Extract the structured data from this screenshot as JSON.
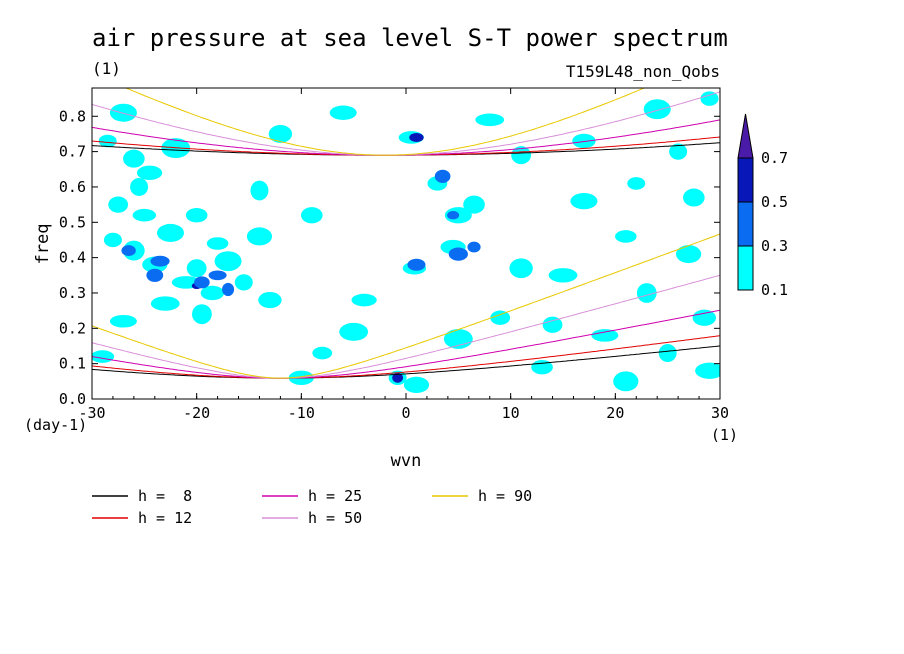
{
  "chart_data": {
    "type": "contour",
    "title": "air pressure at sea level S-T power spectrum",
    "units_label": "(1)",
    "run_label": "T159L48_non_Qobs",
    "xlabel": "wvn",
    "x_units": "(1)",
    "ylabel": "freq",
    "y_units": "(day-1)",
    "xlim": [
      -30,
      30
    ],
    "ylim": [
      0.0,
      0.88
    ],
    "x_ticks": [
      -30,
      -20,
      -10,
      0,
      10,
      20,
      30
    ],
    "y_ticks": [
      0.0,
      0.1,
      0.2,
      0.3,
      0.4,
      0.5,
      0.6,
      0.7,
      0.8
    ],
    "color_levels": [
      0.1,
      0.3,
      0.5,
      0.7
    ],
    "colorbar_colors": [
      "#00ffff",
      "#0a6cf0",
      "#0818b8",
      "#4a1aa8"
    ],
    "contour_blobs": [
      {
        "x": -28.5,
        "y": 0.73,
        "level": 0
      },
      {
        "x": -26,
        "y": 0.68,
        "level": 0
      },
      {
        "x": -24.5,
        "y": 0.64,
        "level": 0
      },
      {
        "x": -22,
        "y": 0.71,
        "level": 0
      },
      {
        "x": -27.5,
        "y": 0.55,
        "level": 0
      },
      {
        "x": -25,
        "y": 0.52,
        "level": 0
      },
      {
        "x": -22.5,
        "y": 0.47,
        "level": 0
      },
      {
        "x": -28,
        "y": 0.45,
        "level": 0
      },
      {
        "x": -26,
        "y": 0.42,
        "level": 0
      },
      {
        "x": -24,
        "y": 0.38,
        "level": 0
      },
      {
        "x": -21,
        "y": 0.33,
        "level": 0
      },
      {
        "x": -20,
        "y": 0.37,
        "level": 0
      },
      {
        "x": -18.5,
        "y": 0.3,
        "level": 0
      },
      {
        "x": -17,
        "y": 0.39,
        "level": 0
      },
      {
        "x": -15.5,
        "y": 0.33,
        "level": 0
      },
      {
        "x": -18,
        "y": 0.44,
        "level": 0
      },
      {
        "x": -14,
        "y": 0.46,
        "level": 0
      },
      {
        "x": -23,
        "y": 0.27,
        "level": 0
      },
      {
        "x": -19.5,
        "y": 0.24,
        "level": 0
      },
      {
        "x": -13,
        "y": 0.28,
        "level": 0
      },
      {
        "x": -27,
        "y": 0.22,
        "level": 0
      },
      {
        "x": -25.5,
        "y": 0.6,
        "level": 0
      },
      {
        "x": -20,
        "y": 0.52,
        "level": 0
      },
      {
        "x": -24,
        "y": 0.35,
        "level": 1
      },
      {
        "x": -23.5,
        "y": 0.39,
        "level": 1
      },
      {
        "x": -20,
        "y": 0.32,
        "level": 2
      },
      {
        "x": -19.5,
        "y": 0.33,
        "level": 1
      },
      {
        "x": -18,
        "y": 0.35,
        "level": 1
      },
      {
        "x": -17,
        "y": 0.31,
        "level": 1
      },
      {
        "x": -26.5,
        "y": 0.42,
        "level": 1
      },
      {
        "x": 0.5,
        "y": 0.74,
        "level": 0
      },
      {
        "x": 1,
        "y": 0.74,
        "level": 2
      },
      {
        "x": 3,
        "y": 0.61,
        "level": 0
      },
      {
        "x": 3.5,
        "y": 0.63,
        "level": 1
      },
      {
        "x": 5,
        "y": 0.52,
        "level": 0
      },
      {
        "x": 4.5,
        "y": 0.52,
        "level": 1
      },
      {
        "x": 6.5,
        "y": 0.55,
        "level": 0
      },
      {
        "x": 4.5,
        "y": 0.43,
        "level": 0
      },
      {
        "x": 5,
        "y": 0.41,
        "level": 1
      },
      {
        "x": 6.5,
        "y": 0.43,
        "level": 1
      },
      {
        "x": 0.8,
        "y": 0.37,
        "level": 0
      },
      {
        "x": 1,
        "y": 0.38,
        "level": 1
      },
      {
        "x": -0.8,
        "y": 0.06,
        "level": 0
      },
      {
        "x": -0.8,
        "y": 0.06,
        "level": 2
      },
      {
        "x": 1,
        "y": 0.04,
        "level": 0
      },
      {
        "x": 8,
        "y": 0.79,
        "level": 0
      },
      {
        "x": 11,
        "y": 0.69,
        "level": 0
      },
      {
        "x": 17,
        "y": 0.73,
        "level": 0
      },
      {
        "x": 24,
        "y": 0.82,
        "level": 0
      },
      {
        "x": 26,
        "y": 0.7,
        "level": 0
      },
      {
        "x": 21,
        "y": 0.46,
        "level": 0
      },
      {
        "x": 27,
        "y": 0.41,
        "level": 0
      },
      {
        "x": 15,
        "y": 0.35,
        "level": 0
      },
      {
        "x": 23,
        "y": 0.3,
        "level": 0
      },
      {
        "x": 28.5,
        "y": 0.23,
        "level": 0
      },
      {
        "x": 19,
        "y": 0.18,
        "level": 0
      },
      {
        "x": 25,
        "y": 0.13,
        "level": 0
      },
      {
        "x": 13,
        "y": 0.09,
        "level": 0
      },
      {
        "x": 21,
        "y": 0.05,
        "level": 0
      },
      {
        "x": 29,
        "y": 0.08,
        "level": 0
      },
      {
        "x": -8,
        "y": 0.13,
        "level": 0
      },
      {
        "x": -12,
        "y": 0.75,
        "level": 0
      },
      {
        "x": -6,
        "y": 0.81,
        "level": 0
      },
      {
        "x": -14,
        "y": 0.59,
        "level": 0
      },
      {
        "x": -9,
        "y": 0.52,
        "level": 0
      },
      {
        "x": -4,
        "y": 0.28,
        "level": 0
      },
      {
        "x": -5,
        "y": 0.19,
        "level": 0
      },
      {
        "x": 9,
        "y": 0.23,
        "level": 0
      },
      {
        "x": 11,
        "y": 0.37,
        "level": 0
      },
      {
        "x": 17,
        "y": 0.56,
        "level": 0
      },
      {
        "x": 22,
        "y": 0.61,
        "level": 0
      },
      {
        "x": 27.5,
        "y": 0.57,
        "level": 0
      },
      {
        "x": -10,
        "y": 0.06,
        "level": 0
      },
      {
        "x": 5,
        "y": 0.17,
        "level": 0
      },
      {
        "x": 14,
        "y": 0.21,
        "level": 0
      },
      {
        "x": -29,
        "y": 0.12,
        "level": 0
      },
      {
        "x": -27,
        "y": 0.81,
        "level": 0
      },
      {
        "x": 29,
        "y": 0.85,
        "level": 0
      }
    ],
    "series": [
      {
        "name": "h =  8",
        "h": 8,
        "color": "#000000"
      },
      {
        "name": "h = 12",
        "h": 12,
        "color": "#e00000"
      },
      {
        "name": "h = 25",
        "h": 25,
        "color": "#d000b0"
      },
      {
        "name": "h = 50",
        "h": 50,
        "color": "#d890d8"
      },
      {
        "name": "h = 90",
        "h": 90,
        "color": "#e8c800"
      }
    ]
  }
}
